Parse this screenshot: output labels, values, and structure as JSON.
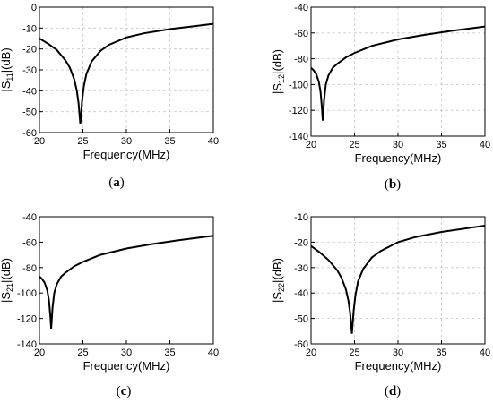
{
  "chart_data": [
    {
      "type": "line",
      "panel_label": "(a)",
      "panel_letter": "a",
      "xlabel": "Frequency(MHz)",
      "ylabel_main": "|S",
      "ylabel_sub": "11",
      "ylabel_end": "|(dB)",
      "xlim": [
        20,
        40
      ],
      "ylim": [
        -60,
        0
      ],
      "xticks": [
        20,
        25,
        30,
        35,
        40
      ],
      "yticks": [
        0,
        -10,
        -20,
        -30,
        -40,
        -50,
        -60
      ],
      "grid": true,
      "series": [
        {
          "x": [
            20,
            21,
            22,
            23,
            23.5,
            24,
            24.3,
            24.5,
            24.6,
            24.7,
            24.8,
            24.9,
            25.1,
            25.4,
            26,
            27,
            28,
            30,
            32,
            35,
            38,
            40
          ],
          "y": [
            -15,
            -17.5,
            -20.5,
            -25.5,
            -29,
            -34.5,
            -40,
            -46,
            -51,
            -56,
            -51,
            -45,
            -38,
            -32,
            -26,
            -21,
            -18,
            -14.5,
            -12.5,
            -10.5,
            -9,
            -8
          ]
        }
      ]
    },
    {
      "type": "line",
      "panel_label": "(b)",
      "panel_letter": "b",
      "xlabel": "Frequency(MHz)",
      "ylabel_main": "|S",
      "ylabel_sub": "12",
      "ylabel_end": "|(dB)",
      "xlim": [
        20,
        40
      ],
      "ylim": [
        -140,
        -40
      ],
      "xticks": [
        20,
        25,
        30,
        35,
        40
      ],
      "yticks": [
        -40,
        -60,
        -80,
        -100,
        -120,
        -140
      ],
      "grid": true,
      "series": [
        {
          "x": [
            20,
            20.3,
            20.6,
            20.9,
            21.1,
            21.25,
            21.35,
            21.5,
            21.7,
            22,
            22.5,
            23,
            24,
            25,
            27,
            30,
            33,
            36,
            40
          ],
          "y": [
            -87,
            -89,
            -92,
            -98,
            -106,
            -118,
            -128,
            -112,
            -100,
            -93,
            -87,
            -84,
            -79,
            -75.5,
            -70,
            -65,
            -61.5,
            -58.5,
            -55
          ]
        }
      ]
    },
    {
      "type": "line",
      "panel_label": "(c)",
      "panel_letter": "c",
      "xlabel": "Frequency(MHz)",
      "ylabel_main": "|S",
      "ylabel_sub": "21",
      "ylabel_end": "|(dB)",
      "xlim": [
        20,
        40
      ],
      "ylim": [
        -140,
        -40
      ],
      "xticks": [
        20,
        25,
        30,
        35,
        40
      ],
      "yticks": [
        -40,
        -60,
        -80,
        -100,
        -120,
        -140
      ],
      "grid": false,
      "series": [
        {
          "x": [
            20,
            20.3,
            20.6,
            20.9,
            21.1,
            21.25,
            21.35,
            21.5,
            21.7,
            22,
            22.5,
            23,
            24,
            25,
            27,
            30,
            33,
            36,
            40
          ],
          "y": [
            -87,
            -89,
            -92,
            -98,
            -106,
            -118,
            -128,
            -112,
            -100,
            -93,
            -87,
            -84,
            -79,
            -75.5,
            -70,
            -65,
            -61.5,
            -58.5,
            -55
          ]
        }
      ]
    },
    {
      "type": "line",
      "panel_label": "(d)",
      "panel_letter": "d",
      "xlabel": "Frequency(MHz)",
      "ylabel_main": "|S",
      "ylabel_sub": "22",
      "ylabel_end": "|(dB)",
      "xlim": [
        20,
        40
      ],
      "ylim": [
        -60,
        -10
      ],
      "xticks": [
        20,
        25,
        30,
        35,
        40
      ],
      "yticks": [
        -10,
        -20,
        -30,
        -40,
        -50,
        -60
      ],
      "grid": true,
      "series": [
        {
          "x": [
            20,
            21,
            22,
            23,
            23.5,
            24,
            24.3,
            24.5,
            24.6,
            24.7,
            24.8,
            24.9,
            25.1,
            25.4,
            26,
            27,
            28,
            30,
            32,
            35,
            38,
            40
          ],
          "y": [
            -21.5,
            -24,
            -27,
            -31,
            -34,
            -38.5,
            -43,
            -48,
            -52,
            -56,
            -51.5,
            -47,
            -41,
            -35.5,
            -30.5,
            -26,
            -23.5,
            -20,
            -18,
            -16,
            -14.5,
            -13.5
          ]
        }
      ]
    }
  ]
}
